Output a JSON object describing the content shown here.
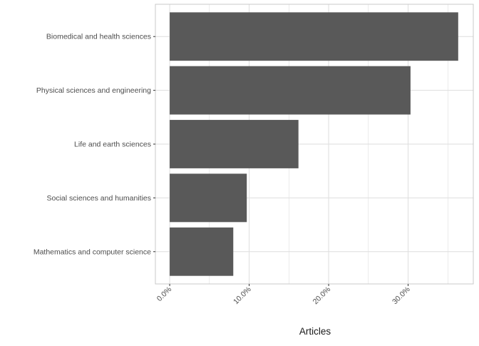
{
  "chart_data": {
    "type": "bar",
    "orientation": "horizontal",
    "categories": [
      "Biomedical and health sciences",
      "Physical sciences and engineering",
      "Life and earth sciences",
      "Social sciences and humanities",
      "Mathematics and computer science"
    ],
    "values": [
      36.3,
      30.3,
      16.2,
      9.7,
      8.0
    ],
    "value_unit": "percent",
    "xlabel": "Articles",
    "ylabel": "",
    "xlim": [
      -1.8,
      38.2
    ],
    "xticks": [
      0,
      10,
      20,
      30
    ],
    "xtick_labels": [
      "0.0%",
      "10.0%",
      "20.0%",
      "30.0%"
    ],
    "xtick_rotation": "45 degrees",
    "grid": true,
    "legend": "none",
    "colors": {
      "bar": "#595959",
      "grid": "#dedede",
      "panel_border": "#c8c8c8",
      "axis_text": "#4d4d4d",
      "title_text": "#1a1a1a"
    }
  }
}
